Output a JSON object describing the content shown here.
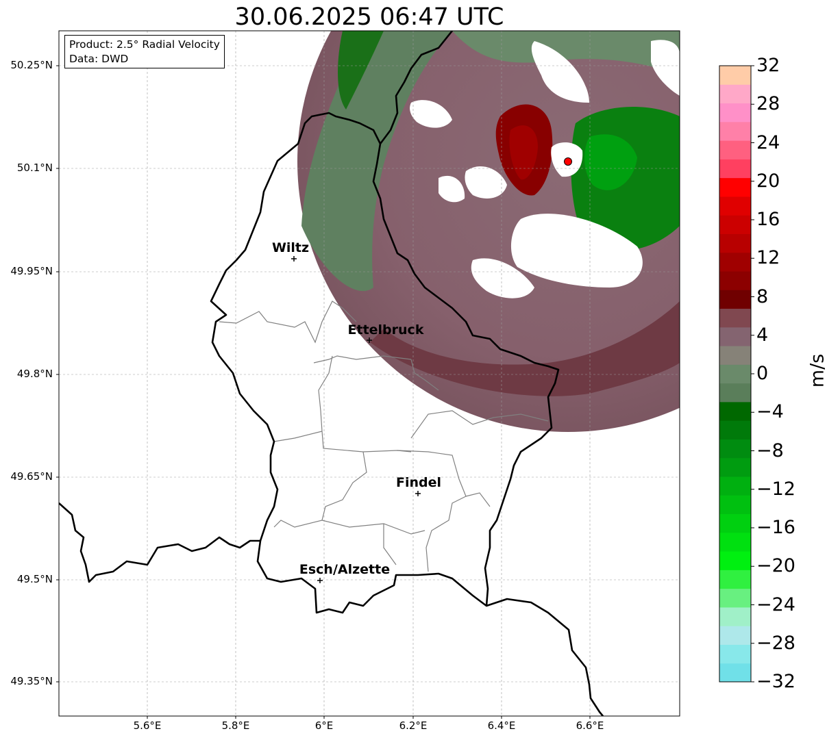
{
  "title": "30.06.2025 06:47 UTC",
  "info": {
    "product": "Product: 2.5° Radial Velocity",
    "source": "Data: DWD"
  },
  "lat_ticks": [
    "50.25°N",
    "50.1°N",
    "49.95°N",
    "49.8°N",
    "49.65°N",
    "49.5°N",
    "49.35°N"
  ],
  "lon_ticks": [
    "5.6°E",
    "5.8°E",
    "6°E",
    "6.2°E",
    "6.4°E",
    "6.6°E"
  ],
  "cities": [
    {
      "name": "Wiltz",
      "lat": 49.966,
      "lon": 5.932
    },
    {
      "name": "Ettelbruck",
      "lat": 49.847,
      "lon": 6.104
    },
    {
      "name": "Findel",
      "lat": 49.626,
      "lon": 6.211
    },
    {
      "name": "Esch/Alzette",
      "lat": 49.496,
      "lon": 5.99
    }
  ],
  "radar_site": {
    "lat": 50.11,
    "lon": 6.548,
    "color": "#ff0000"
  },
  "colorbar": {
    "unit": "m/s",
    "tick_labels": [
      "32",
      "28",
      "24",
      "20",
      "16",
      "12",
      "8",
      "4",
      "0",
      "−4",
      "−8",
      "−12",
      "−16",
      "−20",
      "−24",
      "−28",
      "−32"
    ],
    "range": [
      -32,
      32
    ],
    "colors_bottom_to_top": [
      "#70e0e8",
      "#88e8ea",
      "#aee8ea",
      "#a0f0c8",
      "#68f080",
      "#30f040",
      "#00f010",
      "#00e010",
      "#00d010",
      "#00c010",
      "#00b010",
      "#009c10",
      "#008c10",
      "#007a0a",
      "#006800",
      "#5a7e5a",
      "#6a8a6a",
      "#868278",
      "#846470",
      "#804850",
      "#700000",
      "#8c0000",
      "#a00000",
      "#b80000",
      "#cc0000",
      "#e00000",
      "#ff0000",
      "#ff4060",
      "#ff6080",
      "#ff80a8",
      "#ff90c8",
      "#ffa8c8",
      "#ffcca8"
    ]
  }
}
